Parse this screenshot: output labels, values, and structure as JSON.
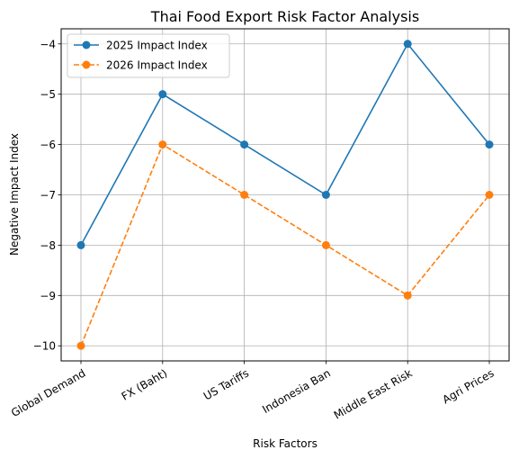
{
  "chart_data": {
    "type": "line",
    "title": "Thai Food Export Risk Factor Analysis",
    "xlabel": "Risk Factors",
    "ylabel": "Negative Impact Index",
    "categories": [
      "Global Demand",
      "FX (Baht)",
      "US Tariffs",
      "Indonesia Ban",
      "Middle East Risk",
      "Agri Prices"
    ],
    "series": [
      {
        "name": "2025 Impact Index",
        "values": [
          -8,
          -5,
          -6,
          -7,
          -4,
          -6
        ],
        "color": "#1f77b4",
        "dash": "solid",
        "marker": "circle"
      },
      {
        "name": "2026 Impact Index",
        "values": [
          -10,
          -6,
          -7,
          -8,
          -9,
          -7
        ],
        "color": "#ff7f0e",
        "dash": "dashed",
        "marker": "circle"
      }
    ],
    "ylim": [
      -10.3,
      -3.7
    ],
    "yticks": [
      -10,
      -9,
      -8,
      -7,
      -6,
      -5,
      -4
    ],
    "ytick_labels": [
      "−10",
      "−9",
      "−8",
      "−7",
      "−6",
      "−5",
      "−4"
    ],
    "grid": true,
    "legend_position": "upper-left"
  }
}
